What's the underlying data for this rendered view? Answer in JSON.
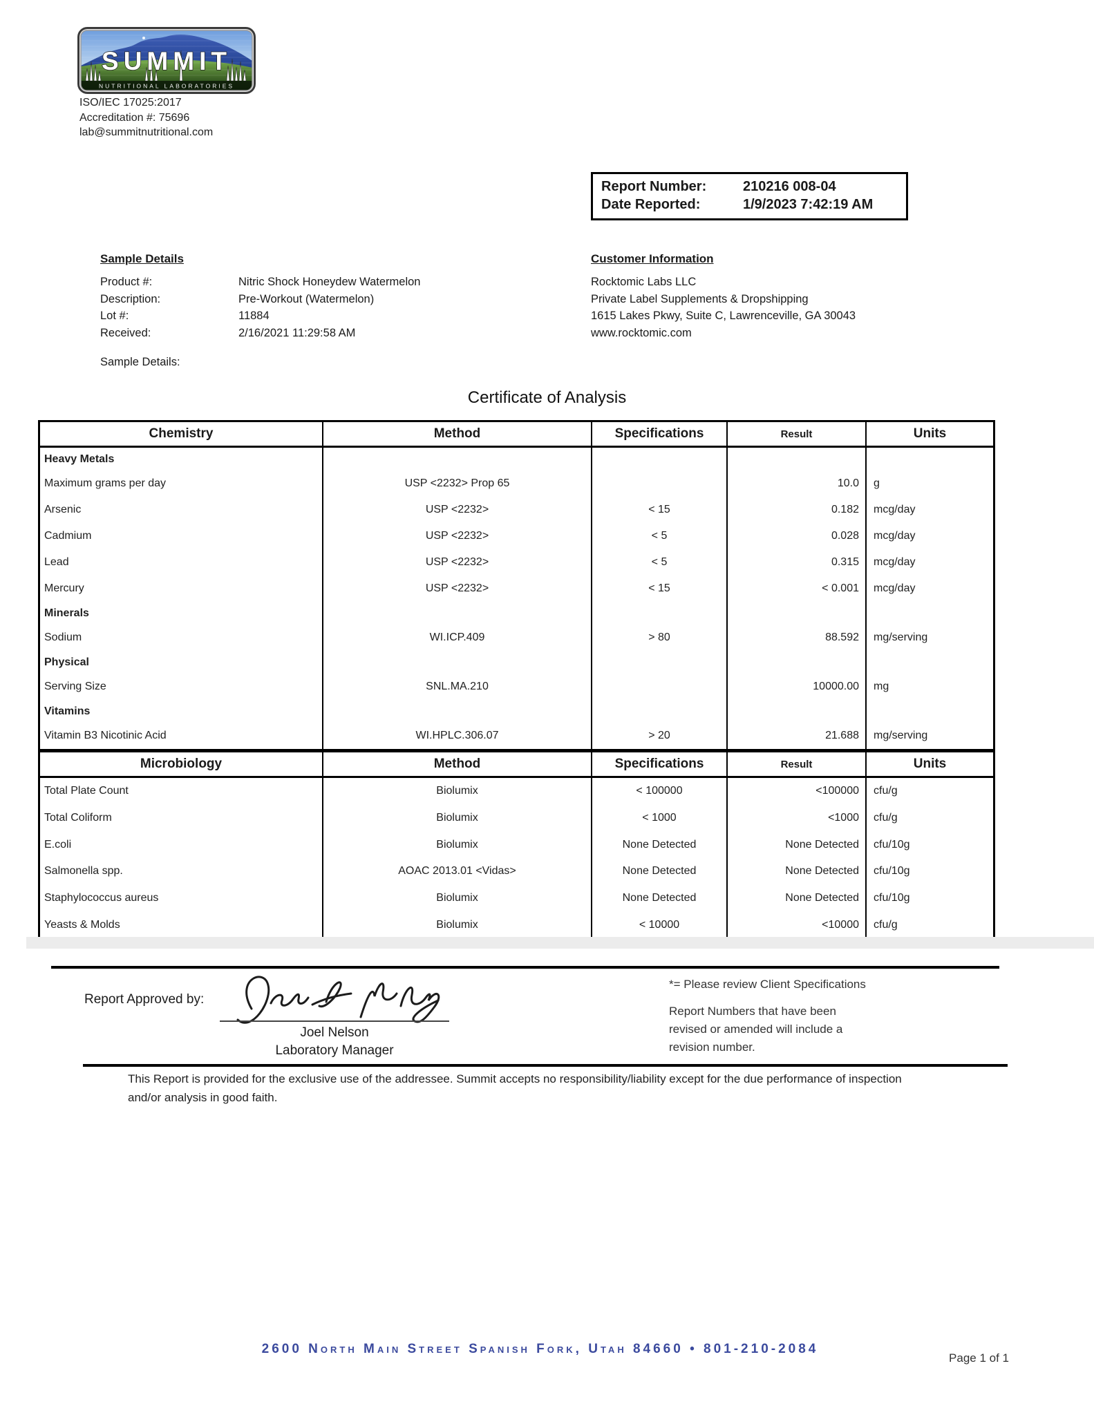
{
  "header": {
    "logo": {
      "brand": "SUMMIT",
      "tagline": "NUTRITIONAL LABORATORIES"
    },
    "accreditation": [
      "ISO/IEC 17025:2017",
      "Accreditation #: 75696",
      "lab@summitnutritional.com"
    ],
    "report_box": {
      "report_number_label": "Report Number:",
      "report_number": "210216 008-04",
      "date_reported_label": "Date Reported:",
      "date_reported": "1/9/2023 7:42:19 AM"
    }
  },
  "sample_details": {
    "title": "Sample Details",
    "fields": [
      {
        "label": "Product #:",
        "value": "Nitric Shock Honeydew Watermelon"
      },
      {
        "label": "Description:",
        "value": "Pre-Workout (Watermelon)"
      },
      {
        "label": "Lot #:",
        "value": "11884"
      },
      {
        "label": "Received:",
        "value": "2/16/2021 11:29:58 AM"
      }
    ],
    "extra_label": "Sample Details:"
  },
  "customer_information": {
    "title": "Customer Information",
    "lines": [
      "Rocktomic Labs LLC",
      "Private Label Supplements & Dropshipping",
      "1615 Lakes Pkwy, Suite C, Lawrenceville, GA 30043",
      "www.rocktomic.com"
    ]
  },
  "certificate": {
    "title": "Certificate of Analysis"
  },
  "chemistry_table": {
    "headers": [
      "Chemistry",
      "Method",
      "Specifications",
      "Result",
      "Units"
    ],
    "rows": [
      {
        "type": "section",
        "name": "Heavy Metals"
      },
      {
        "type": "data",
        "cells": [
          "Maximum grams per day",
          "USP <2232> Prop 65",
          "",
          "10.0",
          "g"
        ]
      },
      {
        "type": "data",
        "cells": [
          "Arsenic",
          "USP <2232>",
          "< 15",
          "0.182",
          "mcg/day"
        ]
      },
      {
        "type": "data",
        "cells": [
          "Cadmium",
          "USP <2232>",
          "< 5",
          "0.028",
          "mcg/day"
        ]
      },
      {
        "type": "data",
        "cells": [
          "Lead",
          "USP <2232>",
          "< 5",
          "0.315",
          "mcg/day"
        ]
      },
      {
        "type": "data",
        "cells": [
          "Mercury",
          "USP <2232>",
          "< 15",
          "< 0.001",
          "mcg/day"
        ]
      },
      {
        "type": "section",
        "name": "Minerals"
      },
      {
        "type": "data",
        "cells": [
          "Sodium",
          "WI.ICP.409",
          "> 80",
          "88.592",
          "mg/serving"
        ]
      },
      {
        "type": "section",
        "name": "Physical"
      },
      {
        "type": "data",
        "cells": [
          "Serving Size",
          "SNL.MA.210",
          "",
          "10000.00",
          "mg"
        ]
      },
      {
        "type": "section",
        "name": "Vitamins"
      },
      {
        "type": "data",
        "cells": [
          "Vitamin B3 Nicotinic Acid",
          "WI.HPLC.306.07",
          "> 20",
          "21.688",
          "mg/serving"
        ]
      }
    ]
  },
  "microbiology_table": {
    "headers": [
      "Microbiology",
      "Method",
      "Specifications",
      "Result",
      "Units"
    ],
    "rows": [
      {
        "type": "data",
        "cells": [
          "Total Plate Count",
          "Biolumix",
          "< 100000",
          "<100000",
          "cfu/g"
        ]
      },
      {
        "type": "data",
        "cells": [
          "Total Coliform",
          "Biolumix",
          "< 1000",
          "<1000",
          "cfu/g"
        ]
      },
      {
        "type": "data",
        "cells": [
          "E.coli",
          "Biolumix",
          "None Detected",
          "None Detected",
          "cfu/10g"
        ]
      },
      {
        "type": "data",
        "cells": [
          "Salmonella spp.",
          "AOAC 2013.01 <Vidas>",
          "None Detected",
          "None Detected",
          "cfu/10g"
        ]
      },
      {
        "type": "data",
        "cells": [
          "Staphylococcus aureus",
          "Biolumix",
          "None Detected",
          "None Detected",
          "cfu/10g"
        ]
      },
      {
        "type": "data",
        "cells": [
          "Yeasts & Molds",
          "Biolumix",
          "< 10000",
          "<10000",
          "cfu/g"
        ]
      }
    ]
  },
  "approval": {
    "label": "Report Approved by:",
    "signer_name": "Joel Nelson",
    "signer_title": "Laboratory Manager"
  },
  "notes": {
    "client_spec_note": "*= Please review Client Specifications",
    "revision_note": "Report Numbers that have been revised or amended will include a revision number."
  },
  "disclaimer": "This Report is provided for the exclusive use of the addressee. Summit accepts no responsibility/liability except for the due performance of inspection and/or analysis in good faith.",
  "footer": {
    "address": "2600 North Main Street Spanish Fork, Utah 84660 • 801-210-2084",
    "page_number": "Page 1 of 1"
  }
}
